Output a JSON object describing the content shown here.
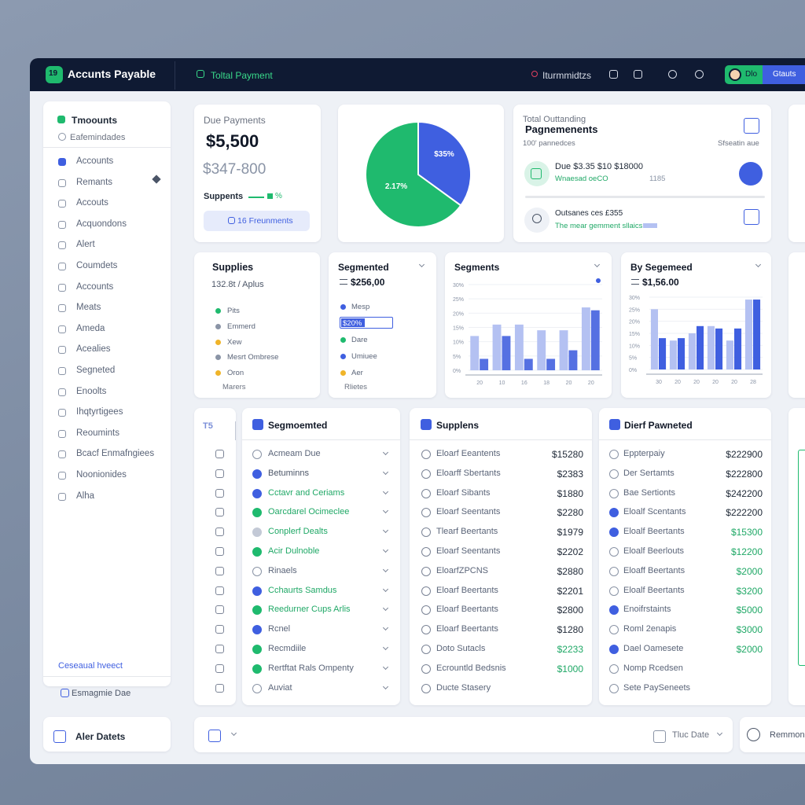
{
  "topbar": {
    "logo": "19",
    "brand": "Accunts Payable",
    "tab": "Toltal Payment",
    "reminders": "Iturmmidtzs",
    "user": "Dlo",
    "status": "Gtauts"
  },
  "sidebar": {
    "title": "Tmoounts",
    "subtitle": "Eafemindades",
    "items": [
      "Accounts",
      "Remants",
      "Accouts",
      "Acquondons",
      "Alert",
      "Coumdets",
      "Accounts",
      "Meats",
      "Ameda",
      "Acealies",
      "Segneted",
      "Enoolts",
      "Ihqtyrtigees",
      "Reoumints",
      "Bcacf Enmafngiees",
      "Noonionides",
      "Alha"
    ],
    "footer_link": "Ceseaual hveect",
    "footer_item": "Esmagmie Dae"
  },
  "alert_card": {
    "label": "Aler Datets"
  },
  "due_card": {
    "title": "Due Payments",
    "amount": "$5,500",
    "secondary": "$347-800",
    "suppliers_label": "Suppents",
    "suppliers_pct": "%",
    "button": "16 Freunments"
  },
  "pie_chart": {
    "type": "pie",
    "values": [
      35,
      65
    ],
    "colors": [
      "#3f5fe0",
      "#1fba6e"
    ],
    "annotations": [
      "$35%",
      "2.17%"
    ]
  },
  "outstanding_card": {
    "title": "Total Outtanding",
    "heading": "Pagnemenents",
    "subtitle": "100' pannedces",
    "side_label": "Sfseatin aue",
    "rows": [
      {
        "title": "Due $3.35 $10 $18000",
        "detail": "Wnaesad oeCO",
        "meta": "1185"
      },
      {
        "title": "Outsanes ces £355",
        "detail": "The mear gemment sllaics"
      }
    ]
  },
  "supplies_card": {
    "title": "Supplies",
    "subtitle": "132.8t / Aplus",
    "legend": [
      {
        "name": "Pits",
        "color": "#1fba6e"
      },
      {
        "name": "Emmerd",
        "color": "#8a94a6"
      },
      {
        "name": "Xew",
        "color": "#f0b429"
      },
      {
        "name": "Mesrt Ombrese",
        "color": "#8a94a6"
      },
      {
        "name": "Oron",
        "color": "#f0b429"
      }
    ],
    "footer": "Marers"
  },
  "segmented_card": {
    "title": "Segmented",
    "amount": "$256,00",
    "legend": [
      {
        "name": "Mesp",
        "color": "#3f5fe0"
      },
      {
        "name": "$20%",
        "color": "#3f5fe0",
        "highlight": true
      },
      {
        "name": "Dare",
        "color": "#1fba6e"
      },
      {
        "name": "Umiuee",
        "color": "#3f5fe0"
      },
      {
        "name": "Aer",
        "color": "#f0b429"
      }
    ],
    "footer": "Rlietes"
  },
  "segments_chart": {
    "type": "bar",
    "title": "Segments",
    "categories": [
      "20",
      "10",
      "16",
      "18",
      "20",
      "20"
    ],
    "series": [
      {
        "color": "#b4c1f2",
        "values": [
          12,
          16,
          16,
          14,
          14,
          22
        ]
      },
      {
        "color": "#5570e2",
        "values": [
          4,
          12,
          4,
          4,
          7,
          21
        ]
      }
    ],
    "ylim": [
      0,
      30
    ],
    "yticks": [
      {
        "value": 0,
        "label": "0%"
      },
      {
        "value": 5,
        "label": "5%"
      },
      {
        "value": 10,
        "label": "10%"
      },
      {
        "value": 15,
        "label": "15%"
      },
      {
        "value": 20,
        "label": "20%"
      },
      {
        "value": 25,
        "label": "25%"
      },
      {
        "value": 30,
        "label": "30%"
      }
    ],
    "grid": true
  },
  "by_segment_chart": {
    "type": "bar",
    "title": "By Segemeed",
    "amount": "$1,56.00",
    "categories": [
      "30",
      "20",
      "20",
      "20",
      "20",
      "28"
    ],
    "series": [
      {
        "color": "#b4c1f2",
        "values": [
          25,
          12,
          15,
          18,
          12,
          29
        ]
      },
      {
        "color": "#3f5fe0",
        "values": [
          13,
          13,
          18,
          17,
          17,
          29
        ]
      }
    ],
    "ylim": [
      0,
      30
    ],
    "yticks": [
      {
        "value": 0,
        "label": "0%"
      },
      {
        "value": 5,
        "label": "5%"
      },
      {
        "value": 10,
        "label": "10%"
      },
      {
        "value": 15,
        "label": "15%"
      },
      {
        "value": 20,
        "label": "20%"
      },
      {
        "value": 25,
        "label": "25%"
      },
      {
        "value": 30,
        "label": "30%"
      }
    ],
    "grid": true
  },
  "side_column": {
    "label": "T5"
  },
  "segmented_list": {
    "title": "Segmoemted",
    "items": [
      {
        "text": "Acmeam Due",
        "icon_color": "#8a94a6",
        "text_color": "#5a6478"
      },
      {
        "text": "Betuminns",
        "icon_color": "#3f5fe0",
        "text_color": "#4b5567"
      },
      {
        "text": "Cctavr and Ceriams",
        "icon_color": "#3f5fe0",
        "text_color": "#1fa866"
      },
      {
        "text": "Oarcdarel Ocimeclee",
        "icon_color": "#1fba6e",
        "text_color": "#1fa866"
      },
      {
        "text": "Conplerf Dealts",
        "icon_color": "#c3c9d6",
        "text_color": "#1fa866"
      },
      {
        "text": "Acir Dulnoble",
        "icon_color": "#1fba6e",
        "text_color": "#1fa866"
      },
      {
        "text": "Rinaels",
        "icon_color": "#8a94a6",
        "text_color": "#5a6478"
      },
      {
        "text": "Cchaurts Samdus",
        "icon_color": "#3f5fe0",
        "text_color": "#1fa866"
      },
      {
        "text": "Reedurner Cups Arlis",
        "icon_color": "#1fba6e",
        "text_color": "#1fa866"
      },
      {
        "text": "Rcnel",
        "icon_color": "#3f5fe0",
        "text_color": "#5a6478"
      },
      {
        "text": "Recmdiile",
        "icon_color": "#1fba6e",
        "text_color": "#5a6478"
      },
      {
        "text": "Rertftat Rals Ompenty",
        "icon_color": "#1fba6e",
        "text_color": "#5a6478"
      },
      {
        "text": "Auviat",
        "icon_color": "#8a94a6",
        "text_color": "#5a6478"
      }
    ]
  },
  "suppliers_list": {
    "title": "Supplens",
    "items": [
      {
        "name": "Eloarf Eeantents",
        "amount": "$15280",
        "amount_color": "#1f2937"
      },
      {
        "name": "Eloarff Sbertants",
        "amount": "$2383",
        "amount_color": "#1f2937"
      },
      {
        "name": "Eloarf Sibants",
        "amount": "$1880",
        "amount_color": "#1f2937"
      },
      {
        "name": "Eloarf Seentants",
        "amount": "$2280",
        "amount_color": "#1f2937"
      },
      {
        "name": "Tlearf Beertants",
        "amount": "$1979",
        "amount_color": "#1f2937"
      },
      {
        "name": "Eloarf Seentants",
        "amount": "$2202",
        "amount_color": "#1f2937"
      },
      {
        "name": "EloarfZPCNS",
        "amount": "$2880",
        "amount_color": "#1f2937"
      },
      {
        "name": "Eloarf Beertants",
        "amount": "$2201",
        "amount_color": "#1f2937"
      },
      {
        "name": "Eloarf Beertants",
        "amount": "$2800",
        "amount_color": "#1f2937"
      },
      {
        "name": "Eloarf Beertants",
        "amount": "$1280",
        "amount_color": "#1f2937"
      },
      {
        "name": "Doto Sutacls",
        "amount": "$2233",
        "amount_color": "#1fa866"
      },
      {
        "name": "Ecrountld Bedsnis",
        "amount": "$1000",
        "amount_color": "#1fa866"
      },
      {
        "name": "Ducte Stasery"
      }
    ]
  },
  "payments_list": {
    "title": "Dierf Pawneted",
    "items": [
      {
        "name": "Eppterpaiy",
        "amount": "$222900",
        "amount_color": "#1f2937",
        "icon_color": "#8a94a6"
      },
      {
        "name": "Der Sertamts",
        "amount": "$222800",
        "amount_color": "#1f2937",
        "icon_color": "#8a94a6"
      },
      {
        "name": "Bae Sertionts",
        "amount": "$242200",
        "amount_color": "#1f2937",
        "icon_color": "#8a94a6"
      },
      {
        "name": "Eloalf Scentants",
        "amount": "$222200",
        "amount_color": "#1f2937",
        "icon_color": "#3f5fe0"
      },
      {
        "name": "Eloalf Beertants",
        "amount": "$15300",
        "amount_color": "#1fa866",
        "icon_color": "#3f5fe0"
      },
      {
        "name": "Eloalf Beerlouts",
        "amount": "$12200",
        "amount_color": "#1fa866",
        "icon_color": "#8a94a6"
      },
      {
        "name": "Eloaff Beertants",
        "amount": "$2000",
        "amount_color": "#1fa866",
        "icon_color": "#8a94a6"
      },
      {
        "name": "Eloalf Beertants",
        "amount": "$3200",
        "amount_color": "#1fa866",
        "icon_color": "#8a94a6"
      },
      {
        "name": "Enoifrstaints",
        "amount": "$5000",
        "amount_color": "#1fa866",
        "icon_color": "#3f5fe0"
      },
      {
        "name": "Roml 2enapis",
        "amount": "$3000",
        "amount_color": "#1fa866",
        "icon_color": "#8a94a6"
      },
      {
        "name": "Dael Oamesete",
        "amount": "$2000",
        "amount_color": "#1fa866",
        "icon_color": "#3f5fe0"
      },
      {
        "name": "Nomp Rcedsen",
        "icon_color": "#8a94a6"
      },
      {
        "name": "Sete PaySeneets",
        "icon_color": "#8a94a6"
      }
    ]
  },
  "bottom_bar": {
    "date_label": "Tluc Date",
    "right_label": "Remmonn"
  }
}
